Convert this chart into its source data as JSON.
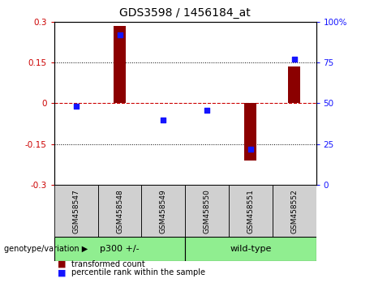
{
  "title": "GDS3598 / 1456184_at",
  "samples": [
    "GSM458547",
    "GSM458548",
    "GSM458549",
    "GSM458550",
    "GSM458551",
    "GSM458552"
  ],
  "red_values": [
    0.0,
    0.285,
    0.0,
    0.0,
    -0.21,
    0.135
  ],
  "blue_values": [
    48,
    92,
    40,
    46,
    22,
    77
  ],
  "group_labels": [
    "p300 +/-",
    "wild-type"
  ],
  "group_sizes": [
    3,
    3
  ],
  "group_color": "#90EE90",
  "group_label_text": "genotype/variation",
  "ylim_left": [
    -0.3,
    0.3
  ],
  "ylim_right": [
    0,
    100
  ],
  "yticks_left": [
    -0.3,
    -0.15,
    0.0,
    0.15,
    0.3
  ],
  "yticks_right": [
    0,
    25,
    50,
    75,
    100
  ],
  "hlines": [
    -0.15,
    0.15
  ],
  "red_color": "#8B0000",
  "blue_color": "#1414ff",
  "legend_red": "transformed count",
  "legend_blue": "percentile rank within the sample",
  "bar_width": 0.28,
  "sample_box_color": "#d0d0d0",
  "title_fontsize": 10,
  "tick_fontsize": 7.5,
  "label_fontsize": 7.5,
  "legend_fontsize": 7
}
